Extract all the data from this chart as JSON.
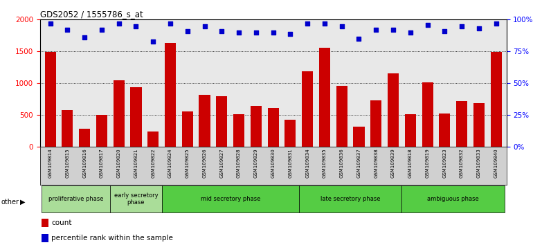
{
  "title": "GDS2052 / 1555786_s_at",
  "samples": [
    "GSM109814",
    "GSM109815",
    "GSM109816",
    "GSM109817",
    "GSM109820",
    "GSM109821",
    "GSM109822",
    "GSM109824",
    "GSM109825",
    "GSM109826",
    "GSM109827",
    "GSM109828",
    "GSM109829",
    "GSM109830",
    "GSM109831",
    "GSM109834",
    "GSM109835",
    "GSM109836",
    "GSM109837",
    "GSM109838",
    "GSM109839",
    "GSM109818",
    "GSM109819",
    "GSM109823",
    "GSM109832",
    "GSM109833",
    "GSM109840"
  ],
  "counts": [
    1490,
    580,
    290,
    500,
    1050,
    940,
    245,
    1630,
    560,
    820,
    800,
    510,
    650,
    610,
    430,
    1190,
    1560,
    960,
    320,
    730,
    1160,
    520,
    1010,
    530,
    720,
    690,
    1490
  ],
  "percentile_ranks": [
    97,
    92,
    86,
    92,
    97,
    95,
    83,
    97,
    91,
    95,
    91,
    90,
    90,
    90,
    89,
    97,
    97,
    95,
    85,
    92,
    92,
    90,
    96,
    91,
    95,
    93,
    97
  ],
  "bar_color": "#cc0000",
  "dot_color": "#0000cc",
  "ylim_left": [
    0,
    2000
  ],
  "ylim_right": [
    0,
    100
  ],
  "yticks_left": [
    0,
    500,
    1000,
    1500,
    2000
  ],
  "yticks_right": [
    0,
    25,
    50,
    75,
    100
  ],
  "grid_values": [
    500,
    1000,
    1500
  ],
  "phase_defs": [
    {
      "start": 0,
      "end": 3,
      "label": "proliferative phase",
      "color": "#aadd99"
    },
    {
      "start": 4,
      "end": 6,
      "label": "early secretory\nphase",
      "color": "#aadd99"
    },
    {
      "start": 7,
      "end": 14,
      "label": "mid secretory phase",
      "color": "#55cc44"
    },
    {
      "start": 15,
      "end": 20,
      "label": "late secretory phase",
      "color": "#55cc44"
    },
    {
      "start": 21,
      "end": 26,
      "label": "ambiguous phase",
      "color": "#55cc44"
    }
  ]
}
